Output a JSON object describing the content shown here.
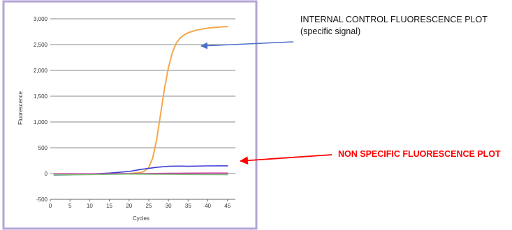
{
  "chart_data": {
    "type": "line",
    "xlabel": "Cycles",
    "ylabel": "Fluorescence",
    "xlim": [
      0,
      47
    ],
    "ylim": [
      -500,
      3000
    ],
    "xticks": [
      0,
      5,
      10,
      15,
      20,
      25,
      30,
      35,
      40,
      45
    ],
    "yticks": [
      -500,
      0,
      500,
      1000,
      1500,
      2000,
      2500,
      3000
    ],
    "ytick_labels": [
      "-500",
      "0",
      "500",
      "1,000",
      "1,500",
      "2,000",
      "2,500",
      "3,000"
    ],
    "grid": "horizontal",
    "series": [
      {
        "color": "#f6a74a",
        "x": [
          1,
          5,
          10,
          15,
          20,
          23,
          24,
          25,
          26,
          27,
          28,
          29,
          30,
          31,
          32,
          33,
          34,
          35,
          37,
          40,
          43,
          45
        ],
        "values": [
          -20,
          -15,
          -10,
          -5,
          0,
          20,
          50,
          120,
          300,
          650,
          1150,
          1650,
          2050,
          2350,
          2530,
          2630,
          2690,
          2730,
          2780,
          2820,
          2840,
          2850
        ]
      },
      {
        "color": "#3b3bd6",
        "x": [
          1,
          5,
          10,
          15,
          20,
          23,
          25,
          27,
          30,
          33,
          35,
          40,
          45
        ],
        "values": [
          -30,
          -25,
          -10,
          10,
          40,
          80,
          100,
          120,
          140,
          145,
          140,
          148,
          150
        ]
      },
      {
        "color": "#d030a0",
        "x": [
          1,
          5,
          10,
          15,
          20,
          25,
          30,
          35,
          40,
          45
        ],
        "values": [
          -10,
          -8,
          -5,
          -3,
          0,
          2,
          5,
          8,
          10,
          10
        ]
      },
      {
        "color": "#7ac27a",
        "x": [
          1,
          5,
          10,
          15,
          20,
          25,
          30,
          35,
          40,
          45
        ],
        "values": [
          -25,
          -25,
          -20,
          -15,
          -10,
          -12,
          -15,
          -18,
          -20,
          -22
        ]
      }
    ]
  },
  "annotations": {
    "internal_control_line1": "INTERNAL CONTROL FLUORESCENCE PLOT",
    "internal_control_line2": "(specific signal)",
    "non_specific": "NON SPECIFIC FLUORESCENCE PLOT"
  },
  "colors": {
    "frame_border": "#b3a4d6",
    "annotation_arrow_blue": "#4a6fc7",
    "annotation_arrow_red": "#ff0000"
  }
}
